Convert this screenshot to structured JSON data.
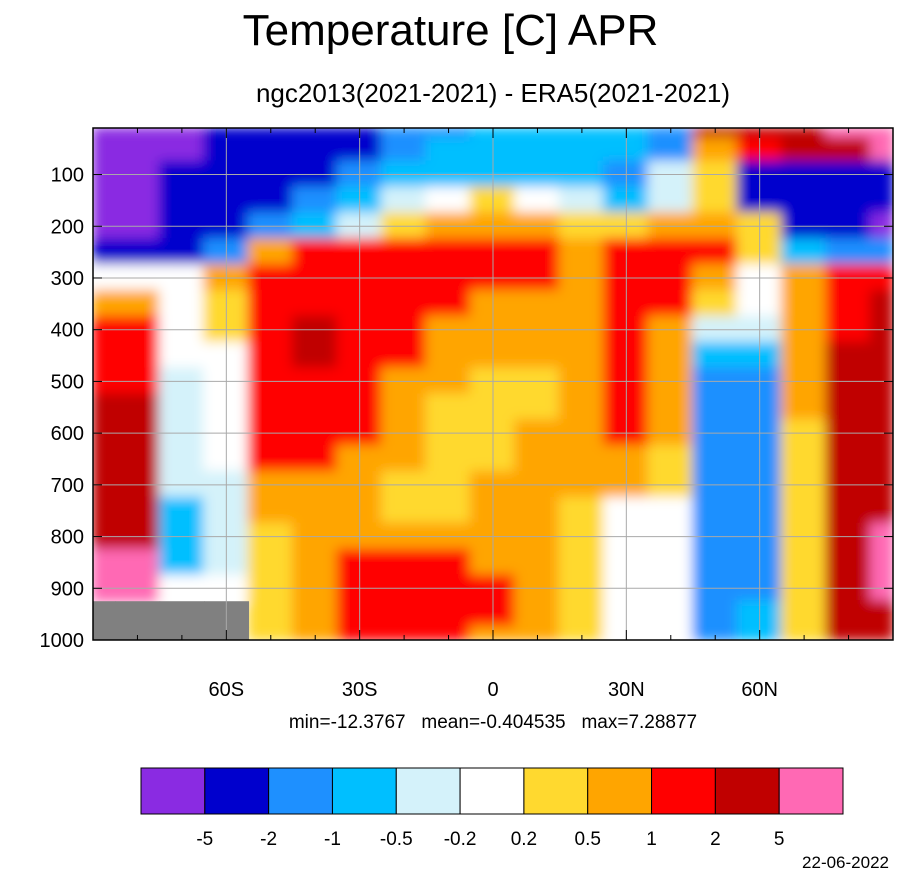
{
  "title": "Temperature [C] APR",
  "subtitle": "ngc2013(2021-2021) - ERA5(2021-2021)",
  "stats": "min=-12.3767   mean=-0.404535   max=7.28877",
  "date": "22-06-2022",
  "colors": {
    "missing": "#808080",
    "levels": [
      "#8a2be2",
      "#0000cd",
      "#1e90ff",
      "#00bfff",
      "#d4f2fa",
      "#ffffff",
      "#ffd92f",
      "#ffa500",
      "#ff0000",
      "#c00000",
      "#ff69b4"
    ]
  },
  "chart_data": {
    "type": "heatmap",
    "title": "Temperature [C] APR",
    "subtitle": "ngc2013(2021-2021) - ERA5(2021-2021)",
    "x_ticks": [
      "60S",
      "30S",
      "0",
      "30N",
      "60N"
    ],
    "x_tick_values": [
      -60,
      -30,
      0,
      30,
      60
    ],
    "xlim": [
      -90,
      90
    ],
    "y_ticks": [
      "100",
      "200",
      "300",
      "400",
      "500",
      "600",
      "700",
      "800",
      "900",
      "1000"
    ],
    "y_tick_values": [
      100,
      200,
      300,
      400,
      500,
      600,
      700,
      800,
      900,
      1000
    ],
    "ylim": [
      1000,
      10
    ],
    "grid": true,
    "colorbar_labels": [
      "-5",
      "-2",
      "-1",
      "-0.5",
      "-0.2",
      "0.2",
      "0.5",
      "1",
      "2",
      "5"
    ],
    "colorbar_levels": [
      -5,
      -2,
      -1,
      -0.5,
      -0.2,
      0.2,
      0.5,
      1,
      2,
      5
    ],
    "stats": {
      "min": -12.3767,
      "mean": -0.404535,
      "max": 7.28877
    },
    "field": {
      "lat": [
        -90,
        -80,
        -70,
        -60,
        -50,
        -40,
        -30,
        -20,
        -10,
        0,
        10,
        20,
        30,
        40,
        50,
        60,
        70,
        80,
        90
      ],
      "lev": [
        10,
        50,
        100,
        150,
        200,
        250,
        300,
        350,
        400,
        450,
        500,
        550,
        600,
        650,
        700,
        750,
        800,
        850,
        900,
        950,
        1000
      ],
      "values": [
        [
          -6,
          -6,
          -6,
          -3,
          -3,
          -3,
          -3,
          -2,
          -2,
          -1,
          -1,
          -1,
          -1,
          -2,
          2,
          2,
          3,
          5,
          6
        ],
        [
          -6,
          -6,
          -6,
          -3,
          -3,
          -3,
          -3,
          -2,
          -1,
          -1,
          -0.7,
          -1,
          -1,
          -1.5,
          0.5,
          1.5,
          2,
          4,
          6
        ],
        [
          -6,
          -6,
          -4,
          -3,
          -3,
          -3,
          -1.5,
          -1,
          -0.7,
          -0.7,
          -0.7,
          -1,
          -1.5,
          -0.3,
          0.3,
          -3,
          -3,
          -3,
          -3
        ],
        [
          -6,
          -6,
          -4,
          -3,
          -3,
          -1.5,
          -1,
          -0.3,
          -0.1,
          0.3,
          0.1,
          -0.3,
          -1,
          -0.3,
          0.3,
          -3,
          -3,
          -3,
          -3
        ],
        [
          -6,
          -6,
          -3,
          -3,
          -2,
          -1,
          -0.3,
          0.3,
          0.6,
          0.6,
          0.6,
          0.3,
          0.3,
          0.6,
          0.6,
          0.3,
          -3,
          -3,
          -6
        ],
        [
          -3,
          -3,
          -3,
          -1.5,
          0.6,
          1.5,
          1.5,
          1.5,
          1.5,
          1.5,
          1.5,
          0.6,
          1.5,
          1.5,
          1.5,
          0.3,
          -1,
          -1.5,
          -1.5
        ],
        [
          -0.1,
          -0.1,
          0.1,
          0.6,
          1.5,
          1.5,
          1.5,
          1.5,
          1.5,
          1.5,
          1.5,
          0.6,
          1.5,
          1.5,
          0.6,
          0.1,
          0.6,
          1.5,
          1.5
        ],
        [
          0.6,
          0.6,
          -0.1,
          0.3,
          1.5,
          1.5,
          1.5,
          1.5,
          1.5,
          0.6,
          0.6,
          0.6,
          1.5,
          1.5,
          0.3,
          0.1,
          0.6,
          1.5,
          2.5
        ],
        [
          1.5,
          1.5,
          -0.1,
          0.3,
          1.5,
          3,
          1.5,
          1.5,
          0.6,
          0.6,
          0.6,
          0.6,
          1.5,
          0.6,
          -0.3,
          -0.3,
          0.6,
          1.5,
          2.5
        ],
        [
          1.5,
          1.5,
          -0.1,
          -0.1,
          1.5,
          3,
          1.5,
          1.5,
          0.6,
          0.6,
          0.6,
          0.6,
          1.5,
          0.6,
          -0.6,
          -0.6,
          0.6,
          2.5,
          3
        ],
        [
          1.5,
          1.5,
          -0.3,
          -0.1,
          1.5,
          1.5,
          1.5,
          0.6,
          0.6,
          0.3,
          0.3,
          0.6,
          1.5,
          0.6,
          -1.5,
          -1.5,
          0.6,
          2.5,
          3
        ],
        [
          2.5,
          2.5,
          -0.3,
          -0.1,
          1.5,
          1.5,
          1.5,
          0.6,
          0.3,
          0.3,
          0.3,
          0.6,
          1.5,
          0.6,
          -1.5,
          -1.5,
          0.6,
          2.5,
          3
        ],
        [
          2.5,
          2.5,
          -0.3,
          -0.1,
          1.5,
          1.5,
          1.5,
          0.6,
          0.3,
          0.3,
          0.6,
          0.6,
          1.5,
          0.6,
          -1.5,
          -1.5,
          0.3,
          2.5,
          3
        ],
        [
          2.5,
          2.5,
          -0.3,
          -0.1,
          1.5,
          1.5,
          0.6,
          0.6,
          0.3,
          0.3,
          0.6,
          0.6,
          0.6,
          0.3,
          -1.5,
          -1.5,
          0.3,
          2.5,
          3
        ],
        [
          2.5,
          2.5,
          -0.3,
          -0.3,
          0.6,
          0.6,
          0.6,
          0.3,
          0.3,
          0.6,
          0.6,
          0.6,
          0.6,
          0.3,
          -1.5,
          -1.5,
          0.3,
          2.5,
          3
        ],
        [
          2.5,
          2.5,
          -0.6,
          -0.3,
          0.6,
          0.6,
          0.6,
          0.3,
          0.3,
          0.6,
          0.6,
          0.3,
          0.1,
          0.1,
          -1.5,
          -1.5,
          0.3,
          2.5,
          3
        ],
        [
          3,
          3,
          -0.6,
          -0.3,
          0.3,
          0.6,
          0.6,
          0.6,
          0.6,
          0.6,
          0.6,
          0.3,
          0.1,
          0.1,
          -1.5,
          -1.5,
          0.3,
          2.5,
          6
        ],
        [
          6,
          6,
          -0.6,
          -0.3,
          0.3,
          0.6,
          1.5,
          1.5,
          1.5,
          0.6,
          0.6,
          0.3,
          0.1,
          0.1,
          -1.5,
          -1.5,
          0.3,
          2.5,
          6
        ],
        [
          6,
          6,
          -0.1,
          -0.1,
          0.3,
          0.6,
          1.5,
          1.5,
          1.5,
          1.5,
          0.6,
          0.3,
          0.1,
          0.1,
          -1.5,
          -1.5,
          0.3,
          2.5,
          6
        ],
        [
          -99,
          -99,
          -99,
          -99,
          0.3,
          0.6,
          1.5,
          1.5,
          1.5,
          1.5,
          0.6,
          0.3,
          0.1,
          0.1,
          -1.5,
          -0.6,
          0.3,
          2.5,
          3
        ],
        [
          -99,
          -99,
          -99,
          -99,
          0.3,
          0.6,
          1.5,
          1.5,
          1.5,
          0.6,
          0.6,
          0.3,
          0.1,
          0.1,
          -1.5,
          -0.6,
          0.3,
          2.5,
          3
        ]
      ]
    }
  }
}
